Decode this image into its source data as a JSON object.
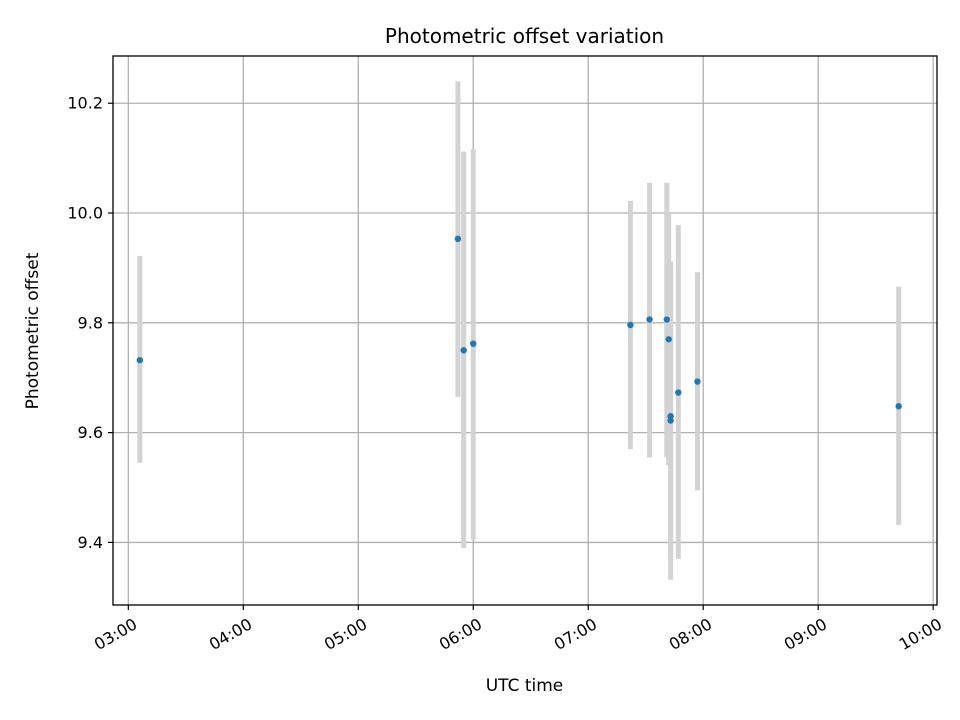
{
  "chart_data": {
    "type": "scatter",
    "title": "Photometric offset variation",
    "xlabel": "UTC time",
    "ylabel": "Photometric offset",
    "x_unit": "UTC time (HH:MM)",
    "xlim": [
      "02:52",
      "10:02"
    ],
    "ylim": [
      9.286,
      10.286
    ],
    "x_ticks": [
      "03:00",
      "04:00",
      "05:00",
      "06:00",
      "07:00",
      "08:00",
      "09:00",
      "10:00"
    ],
    "y_ticks": [
      9.4,
      9.6,
      9.8,
      10.0,
      10.2
    ],
    "y_tick_labels": [
      "9.4",
      "9.6",
      "9.8",
      "10.0",
      "10.2"
    ],
    "grid": true,
    "marker_color": "#1f77b4",
    "errorbar_color": "#d3d3d3",
    "points": [
      {
        "x": "03:06",
        "y": 9.732,
        "yerr_low": 9.545,
        "yerr_high": 9.922
      },
      {
        "x": "05:52",
        "y": 9.953,
        "yerr_low": 9.665,
        "yerr_high": 10.24
      },
      {
        "x": "05:55",
        "y": 9.75,
        "yerr_low": 9.39,
        "yerr_high": 10.112
      },
      {
        "x": "06:00",
        "y": 9.762,
        "yerr_low": 9.405,
        "yerr_high": 10.116
      },
      {
        "x": "07:22",
        "y": 9.796,
        "yerr_low": 9.57,
        "yerr_high": 10.022
      },
      {
        "x": "07:32",
        "y": 9.806,
        "yerr_low": 9.555,
        "yerr_high": 10.055
      },
      {
        "x": "07:41",
        "y": 9.806,
        "yerr_low": 9.555,
        "yerr_high": 10.055
      },
      {
        "x": "07:42",
        "y": 9.77,
        "yerr_low": 9.54,
        "yerr_high": 10.0
      },
      {
        "x": "07:43",
        "y": 9.63,
        "yerr_low": 9.37,
        "yerr_high": 9.912
      },
      {
        "x": "07:43",
        "y": 9.622,
        "yerr_low": 9.332,
        "yerr_high": 9.9
      },
      {
        "x": "07:47",
        "y": 9.673,
        "yerr_low": 9.37,
        "yerr_high": 9.978
      },
      {
        "x": "07:57",
        "y": 9.693,
        "yerr_low": 9.495,
        "yerr_high": 9.892
      },
      {
        "x": "09:42",
        "y": 9.648,
        "yerr_low": 9.432,
        "yerr_high": 9.866
      }
    ]
  }
}
